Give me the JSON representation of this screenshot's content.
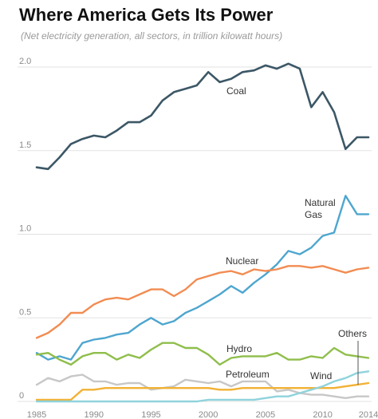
{
  "title": "Where America Gets Its Power",
  "subtitle": "(Net electricity generation, all sectors, in trillion kilowatt hours)",
  "chart_data": {
    "type": "line",
    "x": [
      1985,
      1986,
      1987,
      1988,
      1989,
      1990,
      1991,
      1992,
      1993,
      1994,
      1995,
      1996,
      1997,
      1998,
      1999,
      2000,
      2001,
      2002,
      2003,
      2004,
      2005,
      2006,
      2007,
      2008,
      2009,
      2010,
      2011,
      2012,
      2013,
      2014
    ],
    "xticks": [
      1985,
      1990,
      1995,
      2000,
      2005,
      2010,
      2014
    ],
    "xtick_labels": [
      "1985",
      "1990",
      "1995",
      "2000",
      "2005",
      "2010",
      "2014"
    ],
    "yticks": [
      0,
      0.5,
      1.0,
      1.5,
      2.0
    ],
    "ytick_labels": [
      "0",
      "0.5",
      "1.0",
      "1.5",
      "2.0"
    ],
    "xlim": [
      1985,
      2014
    ],
    "ylim": [
      0,
      2.1
    ],
    "grid": true,
    "title": "Where America Gets Its Power",
    "subtitle": "(Net electricity generation, all sectors, in trillion kilowatt hours)",
    "series": [
      {
        "name": "Coal",
        "color": "#3c5766",
        "label_lines": [
          "Coal"
        ],
        "values": [
          1.4,
          1.39,
          1.46,
          1.54,
          1.57,
          1.59,
          1.58,
          1.62,
          1.67,
          1.67,
          1.71,
          1.8,
          1.85,
          1.87,
          1.89,
          1.97,
          1.91,
          1.93,
          1.97,
          1.98,
          2.01,
          1.99,
          2.02,
          1.99,
          1.76,
          1.85,
          1.73,
          1.51,
          1.58,
          1.58
        ]
      },
      {
        "name": "Natural Gas",
        "color": "#4ea6cf",
        "label_lines": [
          "Natural",
          "Gas"
        ],
        "values": [
          0.29,
          0.25,
          0.27,
          0.25,
          0.35,
          0.37,
          0.38,
          0.4,
          0.41,
          0.46,
          0.5,
          0.46,
          0.48,
          0.53,
          0.56,
          0.6,
          0.64,
          0.69,
          0.65,
          0.71,
          0.76,
          0.82,
          0.9,
          0.88,
          0.92,
          0.99,
          1.01,
          1.23,
          1.12,
          1.12
        ]
      },
      {
        "name": "Nuclear",
        "color": "#f28c52",
        "label_lines": [
          "Nuclear"
        ],
        "values": [
          0.38,
          0.41,
          0.46,
          0.53,
          0.53,
          0.58,
          0.61,
          0.62,
          0.61,
          0.64,
          0.67,
          0.67,
          0.63,
          0.67,
          0.73,
          0.75,
          0.77,
          0.78,
          0.76,
          0.79,
          0.78,
          0.79,
          0.81,
          0.81,
          0.8,
          0.81,
          0.79,
          0.77,
          0.79,
          0.8
        ]
      },
      {
        "name": "Hydro",
        "color": "#8fbe4b",
        "label_lines": [
          "Hydro"
        ],
        "values": [
          0.28,
          0.29,
          0.25,
          0.22,
          0.27,
          0.29,
          0.29,
          0.25,
          0.28,
          0.26,
          0.31,
          0.35,
          0.35,
          0.32,
          0.32,
          0.28,
          0.22,
          0.26,
          0.27,
          0.27,
          0.27,
          0.29,
          0.25,
          0.25,
          0.27,
          0.26,
          0.32,
          0.28,
          0.27,
          0.26
        ]
      },
      {
        "name": "Petroleum",
        "color": "#c7c7c7",
        "label_lines": [
          "Petroleum"
        ],
        "values": [
          0.1,
          0.14,
          0.12,
          0.15,
          0.16,
          0.12,
          0.12,
          0.1,
          0.11,
          0.11,
          0.07,
          0.08,
          0.09,
          0.13,
          0.12,
          0.11,
          0.12,
          0.09,
          0.12,
          0.12,
          0.12,
          0.06,
          0.07,
          0.05,
          0.04,
          0.04,
          0.03,
          0.02,
          0.03,
          0.03
        ]
      },
      {
        "name": "Others",
        "color": "#f2b134",
        "label_lines": [
          "Others"
        ],
        "values": [
          0.01,
          0.01,
          0.01,
          0.01,
          0.07,
          0.07,
          0.08,
          0.08,
          0.08,
          0.08,
          0.08,
          0.08,
          0.08,
          0.08,
          0.08,
          0.08,
          0.07,
          0.07,
          0.08,
          0.08,
          0.08,
          0.08,
          0.08,
          0.08,
          0.08,
          0.08,
          0.08,
          0.09,
          0.1,
          0.11
        ]
      },
      {
        "name": "Wind",
        "color": "#8fd3dc",
        "label_lines": [
          "Wind"
        ],
        "values": [
          0,
          0,
          0,
          0,
          0,
          0,
          0,
          0,
          0,
          0,
          0,
          0,
          0,
          0,
          0,
          0.01,
          0.01,
          0.01,
          0.01,
          0.01,
          0.02,
          0.03,
          0.03,
          0.05,
          0.07,
          0.09,
          0.12,
          0.14,
          0.17,
          0.18
        ]
      }
    ]
  },
  "annotations": {
    "coal": "Coal",
    "gas_1": "Natural",
    "gas_2": "Gas",
    "nuclear": "Nuclear",
    "hydro": "Hydro",
    "petroleum": "Petroleum",
    "wind": "Wind",
    "others": "Others"
  }
}
